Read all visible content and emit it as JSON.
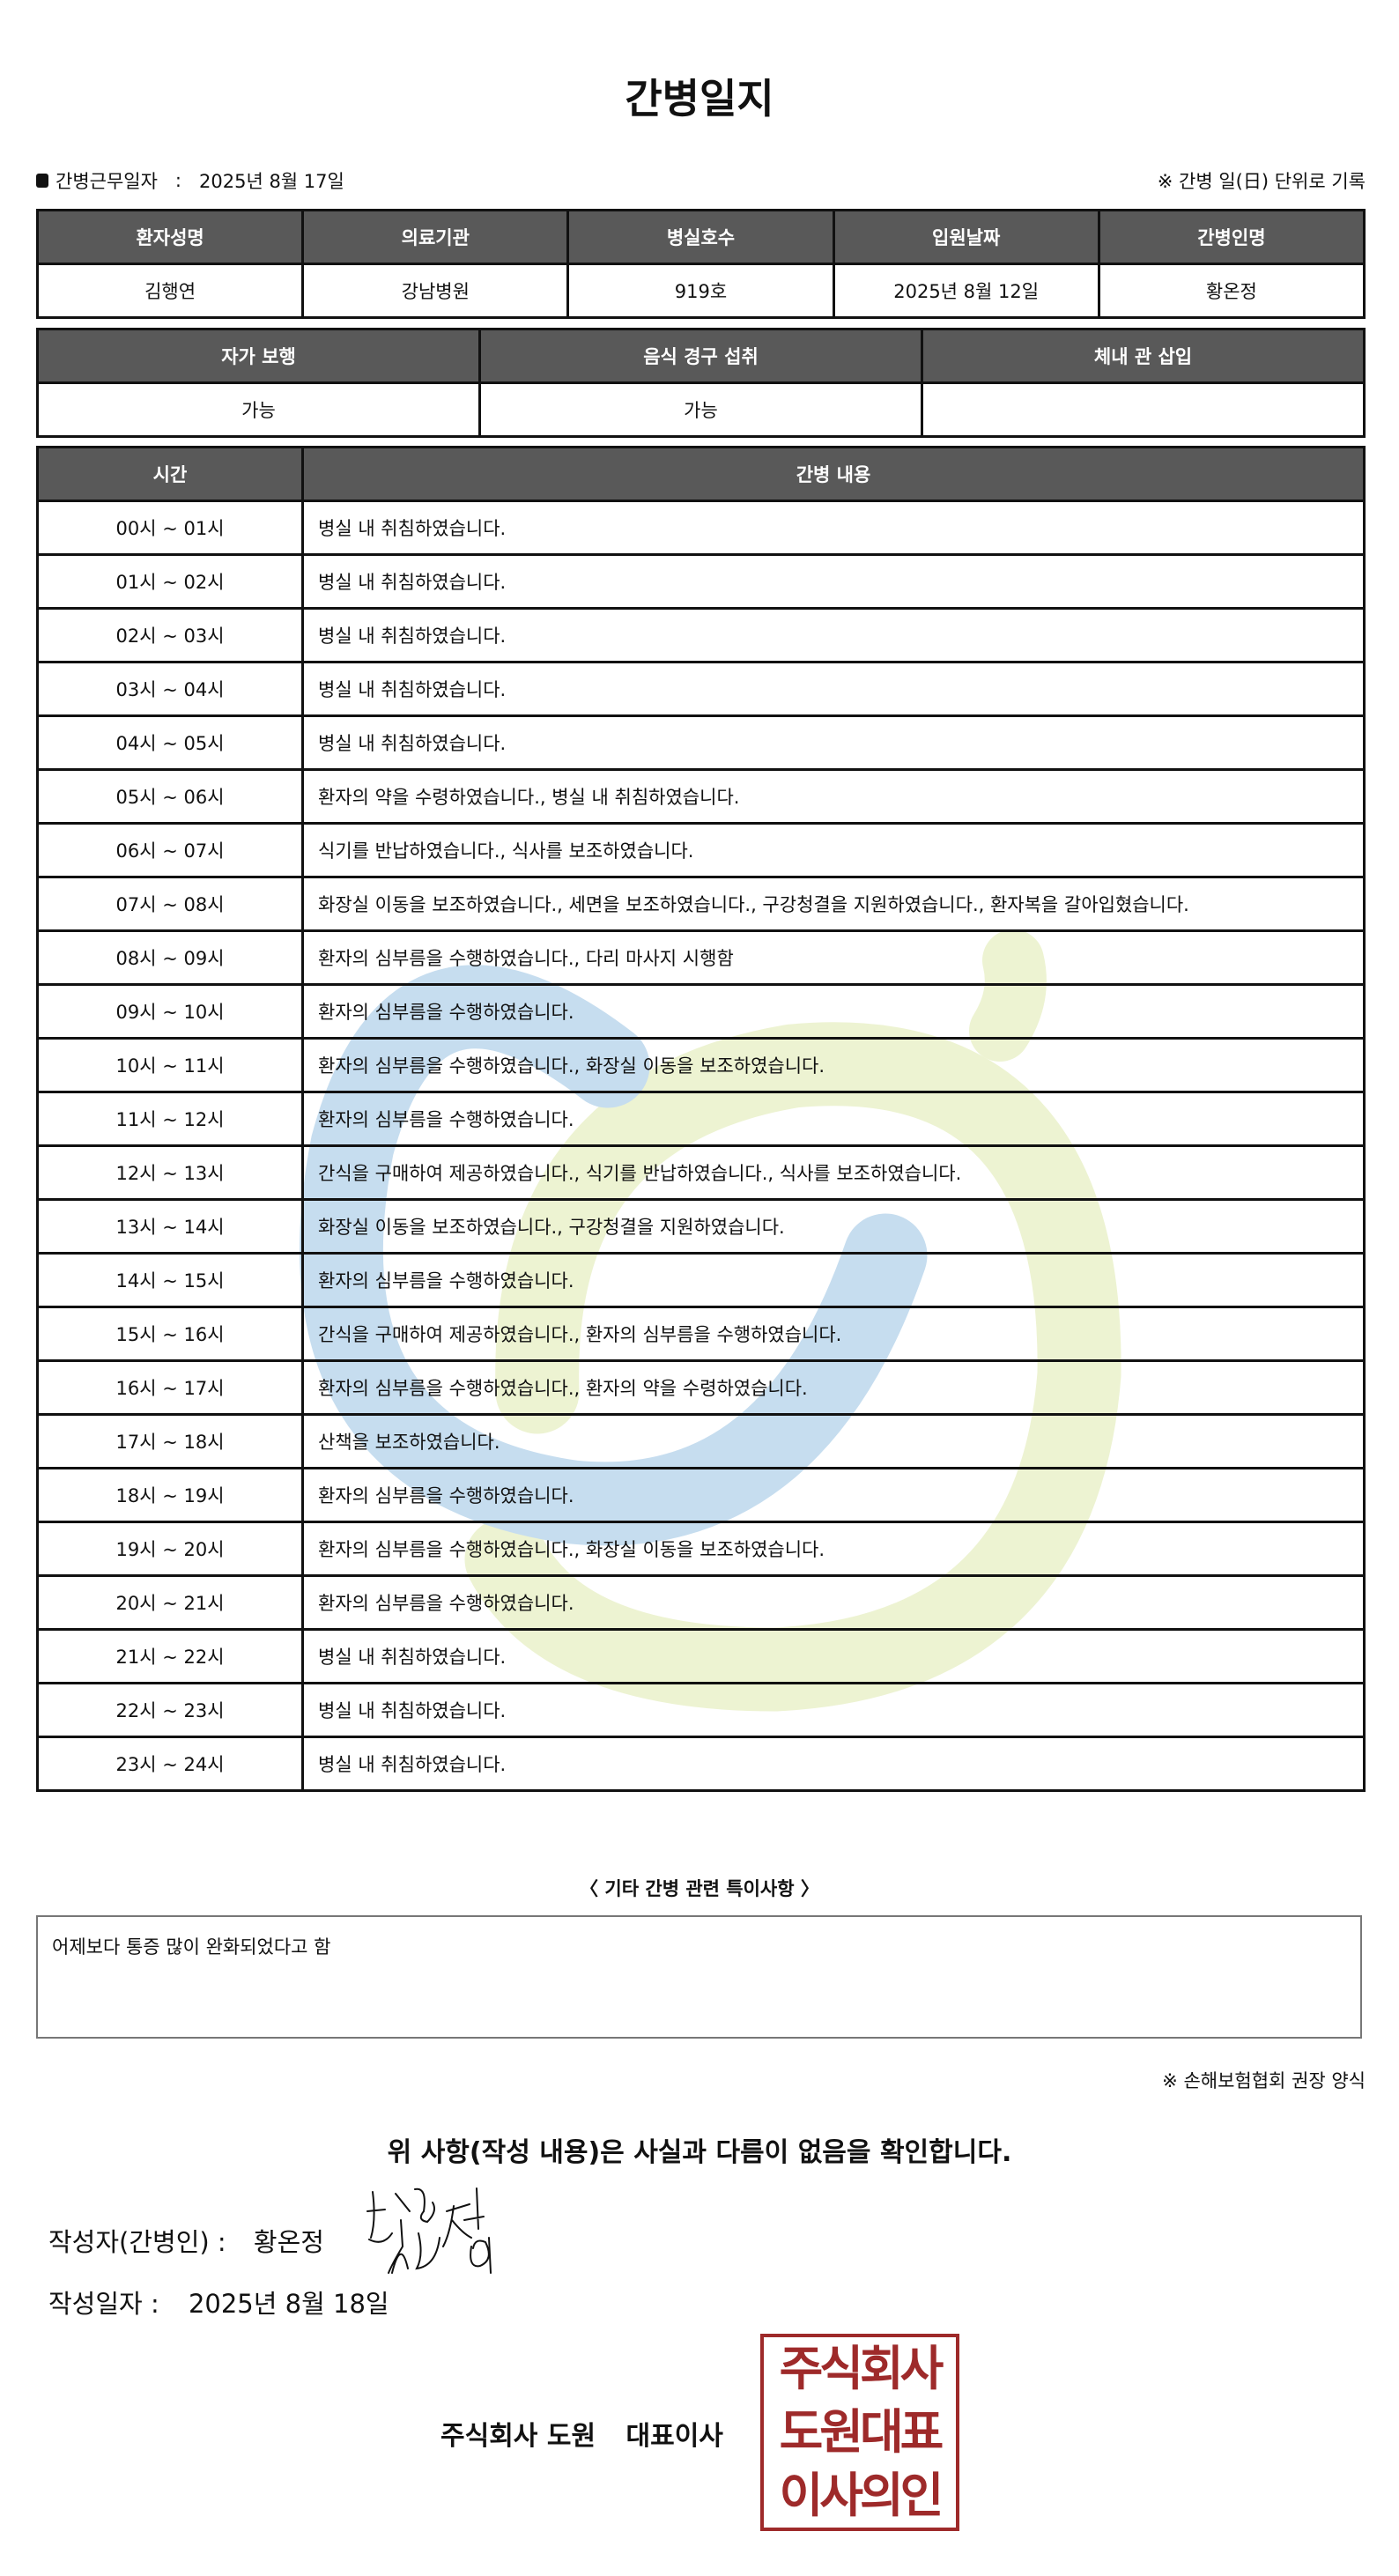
{
  "title": "간병일지",
  "work_date_label": "간병근무일자",
  "work_date_sep": ":",
  "work_date": "2025년 8월 17일",
  "record_note": "※ 간병 일(日) 단위로 기록",
  "patient_table": {
    "headers": [
      "환자성명",
      "의료기관",
      "병실호수",
      "입원날짜",
      "간병인명"
    ],
    "values": [
      "김행연",
      "강남병원",
      "919호",
      "2025년 8월 12일",
      "황온정"
    ]
  },
  "status_table": {
    "headers": [
      "자가 보행",
      "음식 경구 섭취",
      "체내 관 삽입"
    ],
    "values": [
      "가능",
      "가능",
      ""
    ]
  },
  "care_table": {
    "headers": [
      "시간",
      "간병 내용"
    ],
    "rows": [
      {
        "time": "00시 ~ 01시",
        "content": "병실 내 취침하였습니다."
      },
      {
        "time": "01시 ~ 02시",
        "content": "병실 내 취침하였습니다."
      },
      {
        "time": "02시 ~ 03시",
        "content": "병실 내 취침하였습니다."
      },
      {
        "time": "03시 ~ 04시",
        "content": "병실 내 취침하였습니다."
      },
      {
        "time": "04시 ~ 05시",
        "content": "병실 내 취침하였습니다."
      },
      {
        "time": "05시 ~ 06시",
        "content": "환자의 약을 수령하였습니다., 병실 내 취침하였습니다."
      },
      {
        "time": "06시 ~ 07시",
        "content": "식기를 반납하였습니다., 식사를 보조하였습니다."
      },
      {
        "time": "07시 ~ 08시",
        "content": "화장실 이동을 보조하였습니다., 세면을 보조하였습니다., 구강청결을 지원하였습니다., 환자복을 갈아입혔습니다."
      },
      {
        "time": "08시 ~ 09시",
        "content": "환자의 심부름을 수행하였습니다., 다리 마사지 시행함"
      },
      {
        "time": "09시 ~ 10시",
        "content": "환자의 심부름을 수행하였습니다."
      },
      {
        "time": "10시 ~ 11시",
        "content": "환자의 심부름을 수행하였습니다., 화장실 이동을 보조하였습니다."
      },
      {
        "time": "11시 ~ 12시",
        "content": "환자의 심부름을 수행하였습니다."
      },
      {
        "time": "12시 ~ 13시",
        "content": "간식을 구매하여 제공하였습니다., 식기를 반납하였습니다., 식사를 보조하였습니다."
      },
      {
        "time": "13시 ~ 14시",
        "content": "화장실 이동을 보조하였습니다., 구강청결을 지원하였습니다."
      },
      {
        "time": "14시 ~ 15시",
        "content": "환자의 심부름을 수행하였습니다."
      },
      {
        "time": "15시 ~ 16시",
        "content": "간식을 구매하여 제공하였습니다., 환자의 심부름을 수행하였습니다."
      },
      {
        "time": "16시 ~ 17시",
        "content": "환자의 심부름을 수행하였습니다., 환자의 약을 수령하였습니다."
      },
      {
        "time": "17시 ~ 18시",
        "content": "산책을 보조하였습니다."
      },
      {
        "time": "18시 ~ 19시",
        "content": "환자의 심부름을 수행하였습니다."
      },
      {
        "time": "19시 ~ 20시",
        "content": "환자의 심부름을 수행하였습니다., 화장실 이동을 보조하였습니다."
      },
      {
        "time": "20시 ~ 21시",
        "content": "환자의 심부름을 수행하였습니다."
      },
      {
        "time": "21시 ~ 22시",
        "content": "병실 내 취침하였습니다."
      },
      {
        "time": "22시 ~ 23시",
        "content": "병실 내 취침하였습니다."
      },
      {
        "time": "23시 ~ 24시",
        "content": "병실 내 취침하였습니다."
      }
    ]
  },
  "notes_title": "〈 기타 간병 관련 특이사항 〉",
  "notes": "어제보다 통증 많이 완화되었다고 함",
  "form_note": "※ 손해보험협회 권장 양식",
  "confirmation": "위 사항(작성 내용)은 사실과 다름이 없음을 확인합니다.",
  "writer_label": "작성자(간병인) :",
  "writer_name": "황온정",
  "written_date_label": "작성일자 :",
  "written_date": "2025년 8월 18일",
  "company": "주식회사 도원",
  "ceo_label": "대표이사",
  "stamp_lines": [
    "주식회사",
    "도원대표",
    "이사의인"
  ],
  "colors": {
    "header_bg": "#595959",
    "stamp": "#9e2a2a",
    "watermark_blue": "#c6ddef",
    "watermark_yellow": "#edf3d2"
  }
}
